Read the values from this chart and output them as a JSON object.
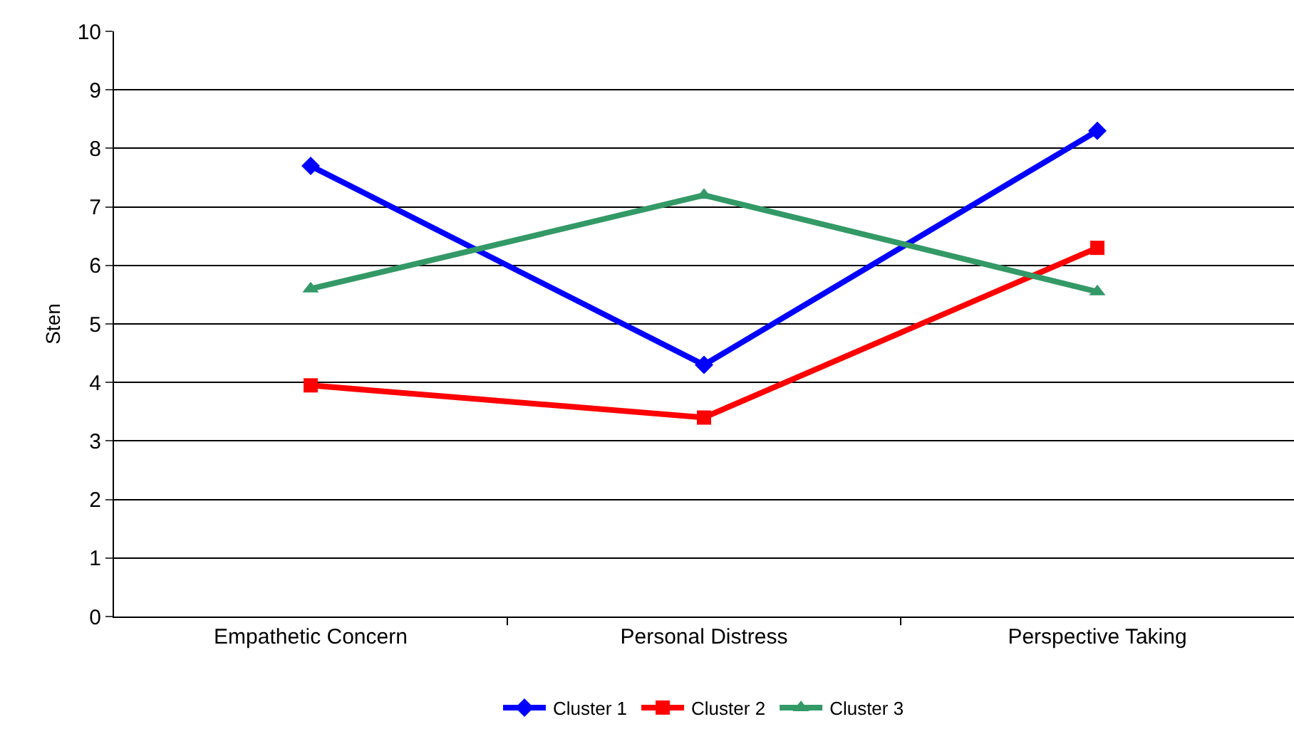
{
  "chart_data": {
    "type": "line",
    "ylabel": "Sten",
    "categories": [
      "Empathetic Concern",
      "Personal Distress",
      "Perspective Taking"
    ],
    "series": [
      {
        "name": "Cluster 1",
        "color": "#0000ff",
        "marker": "diamond",
        "values": [
          7.7,
          4.3,
          8.3
        ]
      },
      {
        "name": "Cluster 2",
        "color": "#ff0000",
        "marker": "square",
        "values": [
          3.95,
          3.4,
          6.3
        ]
      },
      {
        "name": "Cluster 3",
        "color": "#339966",
        "marker": "triangle",
        "values": [
          5.6,
          7.2,
          5.55
        ]
      }
    ],
    "ylim": [
      0,
      10
    ],
    "yticks": [
      0,
      1,
      2,
      3,
      4,
      5,
      6,
      7,
      8,
      9,
      10
    ],
    "grid": "y",
    "legend": "bottom",
    "line_style": "solid"
  }
}
